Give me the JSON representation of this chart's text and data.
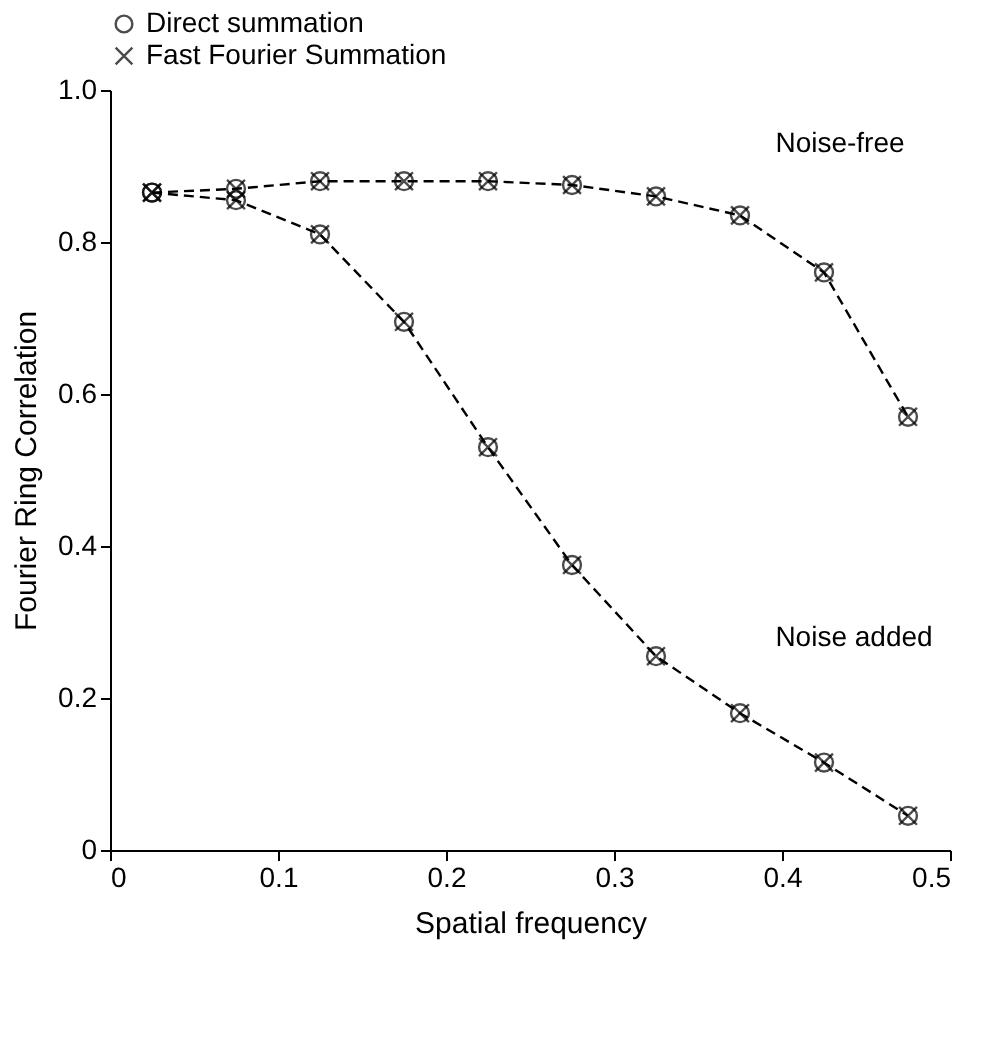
{
  "chart_data": {
    "type": "line",
    "xlabel": "Spatial frequency",
    "ylabel": "Fourier Ring Correlation",
    "xlim": [
      0,
      0.5
    ],
    "xticks": [
      0,
      0.1,
      0.2,
      0.3,
      0.4,
      0.5
    ],
    "ylim": [
      0,
      1
    ],
    "yticks": [
      0,
      0.2,
      0.4,
      0.6,
      0.8,
      {
        "value": 1,
        "label": "1.0"
      }
    ],
    "grid": false,
    "legend": "top",
    "line_style": "dashed",
    "series": [
      {
        "color": "#000000",
        "marker": "none",
        "x": [
          0.025,
          0.075,
          0.125,
          0.175,
          0.225,
          0.275,
          0.325,
          0.375,
          0.425,
          0.475
        ],
        "values": [
          0.865,
          0.87,
          0.88,
          0.88,
          0.88,
          0.875,
          0.86,
          0.835,
          0.76,
          0.57
        ]
      },
      {
        "color": "#000000",
        "marker": "none",
        "x": [
          0.025,
          0.075,
          0.125,
          0.175,
          0.225,
          0.275,
          0.325,
          0.375,
          0.425,
          0.475
        ],
        "values": [
          0.865,
          0.855,
          0.81,
          0.695,
          0.53,
          0.375,
          0.255,
          0.18,
          0.115,
          0.045
        ]
      },
      {
        "type": "scatter",
        "name": "Direct summation",
        "color": "#000000",
        "marker": "circle",
        "x": [
          0.025,
          0.075,
          0.125,
          0.175,
          0.225,
          0.275,
          0.325,
          0.375,
          0.425,
          0.475,
          0.025,
          0.075,
          0.125,
          0.175,
          0.225,
          0.275,
          0.325,
          0.375,
          0.425,
          0.475
        ],
        "values": [
          0.865,
          0.87,
          0.88,
          0.88,
          0.88,
          0.875,
          0.86,
          0.835,
          0.76,
          0.57,
          0.865,
          0.855,
          0.81,
          0.695,
          0.53,
          0.375,
          0.255,
          0.18,
          0.115,
          0.045
        ]
      },
      {
        "type": "scatter",
        "name": "Fast Fourier Summation",
        "color": "#000000",
        "marker": "cross",
        "x": [
          0.025,
          0.075,
          0.125,
          0.175,
          0.225,
          0.275,
          0.325,
          0.375,
          0.425,
          0.475,
          0.025,
          0.075,
          0.125,
          0.175,
          0.225,
          0.275,
          0.325,
          0.375,
          0.425,
          0.475
        ],
        "values": [
          0.865,
          0.87,
          0.88,
          0.88,
          0.88,
          0.875,
          0.86,
          0.835,
          0.76,
          0.57,
          0.865,
          0.855,
          0.81,
          0.695,
          0.53,
          0.375,
          0.255,
          0.18,
          0.115,
          0.045
        ]
      }
    ],
    "annotations": [
      "Noise-free",
      "Noise added"
    ]
  }
}
